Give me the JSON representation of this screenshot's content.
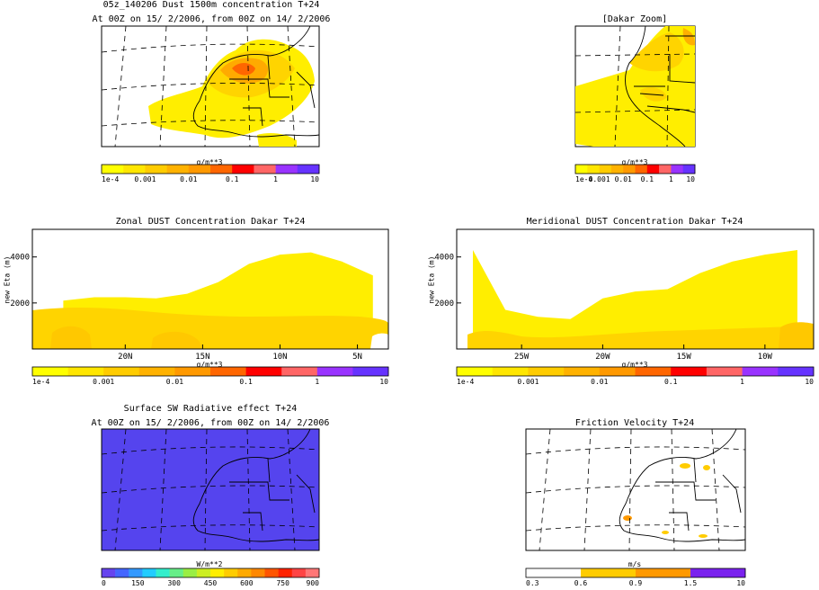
{
  "panels": {
    "main_map": {
      "title1": "05z_140206 Dust 1500m concentration T+24",
      "title2": "At 00Z on 15/ 2/2006, from 00Z on 14/ 2/2006",
      "units": "g/m**3",
      "colorbar": {
        "colors": [
          "#ffff00",
          "#ffe600",
          "#ffcc00",
          "#ffb200",
          "#ff9900",
          "#ff6600",
          "#ff0000",
          "#ff6666",
          "#9933ff",
          "#6633ff"
        ],
        "labels": [
          "1e-4",
          "0.001",
          "0.01",
          "0.1",
          "1",
          "10"
        ]
      }
    },
    "zoom_map": {
      "title": "[Dakar Zoom]",
      "units": "g/m**3",
      "colorbar": {
        "colors": [
          "#ffff00",
          "#ffe600",
          "#ffcc00",
          "#ffb200",
          "#ff9900",
          "#ff6600",
          "#ff0000",
          "#ff6666",
          "#9933ff",
          "#6633ff"
        ],
        "labels": [
          "1e-4",
          "0.001",
          "0.01",
          "0.1",
          "1",
          "10"
        ]
      }
    },
    "zonal": {
      "title": "Zonal DUST Concentration Dakar T+24",
      "ylabel": "new Eta (m)",
      "units": "g/m**3",
      "colorbar": {
        "colors": [
          "#ffff00",
          "#ffe600",
          "#ffcc00",
          "#ffb200",
          "#ff9900",
          "#ff6600",
          "#ff0000",
          "#ff6666",
          "#9933ff",
          "#6633ff"
        ],
        "labels": [
          "1e-4",
          "0.001",
          "0.01",
          "0.1",
          "1",
          "10"
        ]
      }
    },
    "meridional": {
      "title": "Meridional DUST Concentration Dakar T+24",
      "ylabel": "new Eta (m)",
      "units": "g/m**3",
      "colorbar": {
        "colors": [
          "#ffff00",
          "#ffe600",
          "#ffcc00",
          "#ffb200",
          "#ff9900",
          "#ff6600",
          "#ff0000",
          "#ff6666",
          "#9933ff",
          "#6633ff"
        ],
        "labels": [
          "1e-4",
          "0.001",
          "0.01",
          "0.1",
          "1",
          "10"
        ]
      }
    },
    "surface_sw": {
      "title1": "Surface SW Radiative effect T+24",
      "title2": "At 00Z on 15/ 2/2006, from 00Z on 14/ 2/2006",
      "units": "W/m**2",
      "colorbar": {
        "colors": [
          "#6644ee",
          "#4466ff",
          "#3399ff",
          "#22ccff",
          "#33eecc",
          "#66ee88",
          "#99ee44",
          "#ccee22",
          "#ffee00",
          "#ffcc00",
          "#ffaa00",
          "#ff8800",
          "#ff5500",
          "#ff2200",
          "#ff4444",
          "#ff7777"
        ],
        "labels": [
          "0",
          "150",
          "300",
          "450",
          "600",
          "750",
          "900"
        ]
      }
    },
    "friction": {
      "title": "Friction Velocity T+24",
      "units": "m/s",
      "colorbar": {
        "colors": [
          "#ffffff",
          "#ffcc00",
          "#ff9900",
          "#7a22ee"
        ],
        "labels": [
          "0.3",
          "0.6",
          "0.9",
          "1.5",
          "10"
        ]
      }
    }
  },
  "chart_data": [
    {
      "type": "heatmap",
      "title": "05z_140206 Dust 1500m concentration T+24",
      "subtitle": "At 00Z on 15/ 2/2006, from 00Z on 14/ 2/2006",
      "units": "g/m**3",
      "levels": [
        "1e-4",
        "0.001",
        "0.01",
        "0.1",
        "1",
        "10"
      ],
      "max_level_shown": "0.01-0.1"
    },
    {
      "type": "heatmap",
      "title": "[Dakar Zoom]",
      "units": "g/m**3",
      "levels": [
        "1e-4",
        "0.001",
        "0.01",
        "0.1",
        "1",
        "10"
      ]
    },
    {
      "type": "area",
      "title": "Zonal DUST Concentration Dakar T+24",
      "ylabel": "new Eta (m)",
      "xticks": [
        "20N",
        "15N",
        "10N",
        "5N"
      ],
      "yticks": [
        2000,
        4000
      ],
      "x": [
        24,
        22,
        20,
        18,
        16,
        14,
        12,
        10,
        8,
        6,
        4
      ],
      "dust_top_m": [
        2100,
        2250,
        2250,
        2200,
        2400,
        2900,
        3700,
        4100,
        4200,
        3800,
        3200
      ],
      "units": "g/m**3"
    },
    {
      "type": "area",
      "title": "Meridional DUST Concentration Dakar T+24",
      "ylabel": "new Eta (m)",
      "xticks": [
        "25W",
        "20W",
        "15W",
        "10W"
      ],
      "yticks": [
        2000,
        4000
      ],
      "x": [
        -28,
        -26,
        -24,
        -22,
        -20,
        -18,
        -16,
        -14,
        -12,
        -10,
        -8
      ],
      "dust_top_m": [
        4300,
        1700,
        1400,
        1300,
        2200,
        2500,
        2600,
        3300,
        3800,
        4100,
        4300
      ],
      "units": "g/m**3"
    },
    {
      "type": "heatmap",
      "title": "Surface SW Radiative effect T+24",
      "subtitle": "At 00Z on 15/ 2/2006, from 00Z on 14/ 2/2006",
      "units": "W/m**2",
      "levels": [
        "0",
        "150",
        "300",
        "450",
        "600",
        "750",
        "900"
      ]
    },
    {
      "type": "heatmap",
      "title": "Friction Velocity T+24",
      "units": "m/s",
      "levels": [
        "0.3",
        "0.6",
        "0.9",
        "1.5",
        "10"
      ]
    }
  ]
}
